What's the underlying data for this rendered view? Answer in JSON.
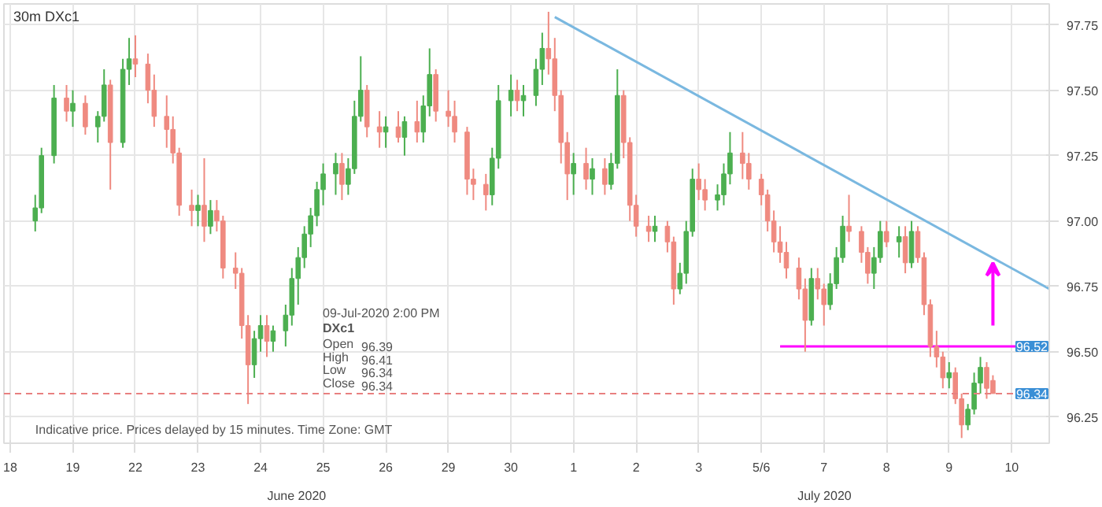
{
  "chart_data": {
    "type": "candlestick",
    "title": "30m  DXc1",
    "categories": [
      "18",
      null,
      null,
      null,
      null,
      null,
      null,
      null,
      null,
      null,
      "19",
      null,
      null,
      null,
      null,
      null,
      null,
      null,
      null,
      null,
      "22",
      null,
      null,
      null,
      null,
      null,
      null,
      null,
      null,
      null,
      "23",
      null,
      null,
      null,
      null,
      null,
      null,
      null,
      null,
      null,
      "24",
      null,
      null,
      null,
      null,
      null,
      null,
      null,
      null,
      null,
      "25",
      null,
      null,
      null,
      null,
      null,
      null,
      null,
      null,
      null,
      "26",
      null,
      null,
      null,
      null,
      null,
      null,
      null,
      null,
      null,
      "29",
      null,
      null,
      null,
      null,
      null,
      null,
      null,
      null,
      null,
      "30",
      null,
      null,
      null,
      null,
      null,
      null,
      null,
      null,
      null,
      "1",
      null,
      null,
      null,
      null,
      null,
      null,
      null,
      null,
      null,
      "2",
      null,
      null,
      null,
      null,
      null,
      null,
      null,
      null,
      null,
      "3",
      null,
      null,
      null,
      null,
      null,
      null,
      null,
      null,
      null,
      "5/6",
      null,
      null,
      null,
      null,
      null,
      null,
      null,
      null,
      null,
      "7",
      null,
      null,
      null,
      null,
      null,
      null,
      null,
      null,
      null,
      "8",
      null,
      null,
      null,
      null,
      null,
      null,
      null,
      null,
      null,
      "9",
      null,
      null,
      null,
      null,
      null,
      null,
      null,
      null,
      null,
      "10",
      null,
      null,
      null,
      null,
      null,
      null
    ],
    "ylim": [
      96.15,
      97.83
    ],
    "yticks": [
      {
        "value": 96.25,
        "label": "96.25"
      },
      {
        "value": 96.5,
        "label": "96.50"
      },
      {
        "value": 96.75,
        "label": "96.75"
      },
      {
        "value": 97.0,
        "label": "97.00"
      },
      {
        "value": 97.25,
        "label": "97.25"
      },
      {
        "value": 97.5,
        "label": "97.50"
      },
      {
        "value": 97.75,
        "label": "97.75"
      }
    ],
    "grid": true,
    "series": [
      {
        "ohlc": [
          null,
          null,
          null,
          null,
          [
            97.0,
            97.1,
            96.96,
            97.05
          ],
          [
            97.05,
            97.28,
            97.03,
            97.25
          ],
          null,
          [
            97.25,
            97.52,
            97.22,
            97.47
          ],
          null,
          [
            97.47,
            97.52,
            97.38,
            97.42
          ],
          [
            97.42,
            97.5,
            97.36,
            97.45
          ],
          null,
          [
            97.45,
            97.48,
            97.33,
            97.36
          ],
          null,
          [
            97.36,
            97.42,
            97.3,
            97.4
          ],
          [
            97.4,
            97.58,
            97.38,
            97.52
          ],
          [
            97.52,
            97.54,
            97.12,
            97.3
          ],
          null,
          [
            97.3,
            97.62,
            97.28,
            97.58
          ],
          [
            97.58,
            97.7,
            97.52,
            97.62
          ],
          [
            97.62,
            97.71,
            97.55,
            97.6
          ],
          null,
          [
            97.6,
            97.64,
            97.45,
            97.5
          ],
          [
            97.5,
            97.56,
            97.36,
            97.4
          ],
          null,
          [
            97.4,
            97.48,
            97.28,
            97.35
          ],
          [
            97.35,
            97.4,
            97.22,
            97.26
          ],
          [
            97.26,
            97.28,
            97.02,
            97.06
          ],
          null,
          [
            97.06,
            97.12,
            96.98,
            97.04
          ],
          [
            97.04,
            97.1,
            96.98,
            97.06
          ],
          [
            97.06,
            97.24,
            96.92,
            96.98
          ],
          [
            96.98,
            97.08,
            96.95,
            97.04
          ],
          [
            97.04,
            97.08,
            96.96,
            97.0
          ],
          [
            97.0,
            97.02,
            96.78,
            96.82
          ],
          null,
          [
            96.82,
            96.88,
            96.74,
            96.8
          ],
          [
            96.8,
            96.82,
            96.55,
            96.6
          ],
          [
            96.6,
            96.64,
            96.3,
            96.45
          ],
          [
            96.45,
            96.58,
            96.4,
            96.55
          ],
          [
            96.55,
            96.64,
            96.5,
            96.6
          ],
          [
            96.6,
            96.64,
            96.48,
            96.54
          ],
          [
            96.54,
            96.6,
            96.5,
            96.58
          ],
          null,
          [
            96.58,
            96.68,
            96.52,
            96.64
          ],
          [
            96.64,
            96.82,
            96.6,
            96.78
          ],
          [
            96.78,
            96.9,
            96.68,
            96.86
          ],
          [
            96.86,
            96.98,
            96.82,
            96.95
          ],
          [
            96.95,
            97.05,
            96.9,
            97.02
          ],
          [
            97.02,
            97.15,
            96.98,
            97.12
          ],
          [
            97.12,
            97.22,
            97.06,
            97.18
          ],
          null,
          [
            97.18,
            97.26,
            97.1,
            97.22
          ],
          [
            97.22,
            97.26,
            97.08,
            97.14
          ],
          [
            97.14,
            97.24,
            97.1,
            97.2
          ],
          [
            97.2,
            97.46,
            97.18,
            97.4
          ],
          [
            97.4,
            97.63,
            97.38,
            97.5
          ],
          [
            97.5,
            97.52,
            97.32,
            97.36
          ],
          null,
          [
            97.36,
            97.42,
            97.28,
            97.34
          ],
          [
            97.34,
            97.4,
            97.28,
            97.36
          ],
          null,
          [
            97.36,
            97.42,
            97.3,
            97.32
          ],
          [
            97.32,
            97.4,
            97.25,
            97.38
          ],
          null,
          [
            97.38,
            97.46,
            97.3,
            97.34
          ],
          [
            97.34,
            97.48,
            97.3,
            97.44
          ],
          [
            97.44,
            97.66,
            97.4,
            97.56
          ],
          [
            97.56,
            97.58,
            97.38,
            97.42
          ],
          null,
          [
            97.42,
            97.5,
            97.36,
            97.4
          ],
          [
            97.4,
            97.46,
            97.3,
            97.34
          ],
          null,
          [
            97.34,
            97.36,
            97.1,
            97.16
          ],
          [
            97.16,
            97.2,
            97.08,
            97.14
          ],
          null,
          [
            97.14,
            97.18,
            97.04,
            97.1
          ],
          [
            97.1,
            97.28,
            97.06,
            97.24
          ],
          [
            97.24,
            97.52,
            97.2,
            97.46
          ],
          null,
          [
            97.46,
            97.56,
            97.4,
            97.5
          ],
          [
            97.5,
            97.54,
            97.42,
            97.46
          ],
          [
            97.46,
            97.52,
            97.4,
            97.48
          ],
          null,
          [
            97.48,
            97.62,
            97.44,
            97.58
          ],
          [
            97.58,
            97.72,
            97.52,
            97.66
          ],
          [
            97.66,
            97.8,
            97.56,
            97.62
          ],
          [
            97.62,
            97.7,
            97.42,
            97.48
          ],
          [
            97.48,
            97.5,
            97.22,
            97.3
          ],
          [
            97.3,
            97.34,
            97.08,
            97.18
          ],
          [
            97.18,
            97.26,
            97.1,
            97.22
          ],
          null,
          [
            97.22,
            97.28,
            97.12,
            97.16
          ],
          [
            97.16,
            97.24,
            97.1,
            97.2
          ],
          null,
          [
            97.2,
            97.24,
            97.1,
            97.14
          ],
          [
            97.14,
            97.26,
            97.12,
            97.22
          ],
          [
            97.22,
            97.58,
            97.2,
            97.48
          ],
          [
            97.48,
            97.5,
            97.24,
            97.3
          ],
          [
            97.3,
            97.32,
            97.0,
            97.06
          ],
          [
            97.06,
            97.1,
            96.94,
            96.98
          ],
          null,
          [
            96.98,
            97.02,
            96.92,
            96.96
          ],
          [
            96.96,
            97.02,
            96.92,
            96.98
          ],
          null,
          [
            96.98,
            97.0,
            96.88,
            96.92
          ],
          [
            96.92,
            96.94,
            96.68,
            96.74
          ],
          [
            96.74,
            96.84,
            96.72,
            96.8
          ],
          [
            96.8,
            97.0,
            96.76,
            96.96
          ],
          [
            96.96,
            97.2,
            96.94,
            97.16
          ],
          [
            97.16,
            97.22,
            97.08,
            97.12
          ],
          [
            97.12,
            97.16,
            97.04,
            97.08
          ],
          null,
          [
            97.08,
            97.14,
            97.04,
            97.1
          ],
          [
            97.1,
            97.22,
            97.06,
            97.18
          ],
          [
            97.18,
            97.34,
            97.14,
            97.26
          ],
          null,
          [
            97.26,
            97.34,
            97.16,
            97.22
          ],
          [
            97.22,
            97.26,
            97.12,
            97.16
          ],
          null,
          [
            97.16,
            97.18,
            97.06,
            97.1
          ],
          [
            97.1,
            97.12,
            96.96,
            97.0
          ],
          [
            97.0,
            97.04,
            96.88,
            96.92
          ],
          [
            96.92,
            96.98,
            96.84,
            96.88
          ],
          [
            96.88,
            96.92,
            96.78,
            96.82
          ],
          null,
          [
            96.82,
            96.86,
            96.7,
            96.74
          ],
          [
            96.74,
            96.78,
            96.5,
            96.62
          ],
          [
            96.62,
            96.82,
            96.6,
            96.78
          ],
          [
            96.78,
            96.82,
            96.7,
            96.74
          ],
          [
            96.74,
            96.76,
            96.6,
            96.68
          ],
          [
            96.68,
            96.8,
            96.66,
            96.76
          ],
          [
            96.76,
            96.9,
            96.74,
            96.86
          ],
          [
            96.86,
            97.02,
            96.84,
            96.98
          ],
          [
            96.98,
            97.1,
            96.92,
            96.96
          ],
          null,
          [
            96.96,
            96.98,
            96.84,
            96.88
          ],
          [
            96.88,
            96.9,
            96.76,
            96.8
          ],
          [
            96.8,
            96.9,
            96.74,
            96.86
          ],
          [
            96.86,
            97.0,
            96.84,
            96.96
          ],
          [
            96.96,
            97.0,
            96.9,
            96.92
          ],
          null,
          [
            96.92,
            96.98,
            96.86,
            96.94
          ],
          [
            96.94,
            96.98,
            96.8,
            96.84
          ],
          [
            96.84,
            97.0,
            96.82,
            96.96
          ],
          [
            96.96,
            96.98,
            96.84,
            96.86
          ],
          [
            96.86,
            96.88,
            96.64,
            96.68
          ],
          [
            96.68,
            96.7,
            96.48,
            96.52
          ],
          [
            96.52,
            96.58,
            96.44,
            96.48
          ],
          [
            96.48,
            96.5,
            96.36,
            96.4
          ],
          [
            96.4,
            96.46,
            96.36,
            96.42
          ],
          [
            96.42,
            96.44,
            96.3,
            96.32
          ],
          [
            96.32,
            96.34,
            96.17,
            96.22
          ],
          [
            96.22,
            96.3,
            96.2,
            96.28
          ],
          [
            96.28,
            96.42,
            96.26,
            96.38
          ],
          [
            96.38,
            96.48,
            96.34,
            96.44
          ],
          [
            96.44,
            96.46,
            96.32,
            96.36
          ],
          [
            96.39,
            96.41,
            96.34,
            96.34
          ],
          null,
          null,
          null,
          null,
          null,
          null,
          null,
          null,
          null
        ],
        "colors": [
          null,
          null,
          null,
          null,
          "#4caf50",
          "#4caf50",
          null,
          "#4caf50",
          null,
          "#ef8a80",
          "#4caf50",
          null,
          "#ef8a80",
          null,
          "#4caf50",
          "#4caf50",
          "#ef8a80",
          null,
          "#4caf50",
          "#4caf50",
          "#ef8a80",
          null,
          "#ef8a80",
          "#ef8a80",
          null,
          "#ef8a80",
          "#ef8a80",
          "#ef8a80",
          null,
          "#ef8a80",
          "#4caf50",
          "#ef8a80",
          "#4caf50",
          "#ef8a80",
          "#ef8a80",
          null,
          "#ef8a80",
          "#ef8a80",
          "#ef8a80",
          "#4caf50",
          "#4caf50",
          "#ef8a80",
          "#4caf50",
          null,
          "#4caf50",
          "#4caf50",
          "#4caf50",
          "#4caf50",
          "#4caf50",
          "#4caf50",
          "#4caf50",
          null,
          "#4caf50",
          "#ef8a80",
          "#4caf50",
          "#4caf50",
          "#4caf50",
          "#ef8a80",
          null,
          "#ef8a80",
          "#4caf50",
          null,
          "#ef8a80",
          "#4caf50",
          null,
          "#ef8a80",
          "#4caf50",
          "#4caf50",
          "#ef8a80",
          null,
          "#ef8a80",
          "#ef8a80",
          null,
          "#ef8a80",
          "#ef8a80",
          null,
          "#ef8a80",
          "#4caf50",
          "#4caf50",
          null,
          "#4caf50",
          "#ef8a80",
          "#4caf50",
          null,
          "#4caf50",
          "#4caf50",
          "#ef8a80",
          "#ef8a80",
          "#ef8a80",
          "#ef8a80",
          "#4caf50",
          null,
          "#ef8a80",
          "#4caf50",
          null,
          "#ef8a80",
          "#4caf50",
          "#4caf50",
          "#ef8a80",
          "#ef8a80",
          "#ef8a80",
          null,
          "#ef8a80",
          "#4caf50",
          null,
          "#ef8a80",
          "#ef8a80",
          "#4caf50",
          "#4caf50",
          "#4caf50",
          "#ef8a80",
          "#ef8a80",
          null,
          "#4caf50",
          "#4caf50",
          "#4caf50",
          null,
          "#ef8a80",
          "#ef8a80",
          null,
          "#ef8a80",
          "#ef8a80",
          "#ef8a80",
          "#ef8a80",
          "#ef8a80",
          null,
          "#ef8a80",
          "#ef8a80",
          "#4caf50",
          "#ef8a80",
          "#ef8a80",
          "#4caf50",
          "#4caf50",
          "#4caf50",
          "#ef8a80",
          null,
          "#ef8a80",
          "#ef8a80",
          "#4caf50",
          "#4caf50",
          "#ef8a80",
          null,
          "#4caf50",
          "#ef8a80",
          "#4caf50",
          "#ef8a80",
          "#ef8a80",
          "#ef8a80",
          "#ef8a80",
          "#ef8a80",
          "#4caf50",
          "#ef8a80",
          "#ef8a80",
          "#4caf50",
          "#4caf50",
          "#4caf50",
          "#ef8a80",
          "#ef8a80",
          null,
          null,
          null,
          null,
          null,
          null,
          null,
          null,
          null
        ]
      },
      {
        "type": "line",
        "color": "#7ab8e0",
        "values": [
          null,
          null,
          null,
          null,
          null,
          null,
          null,
          null,
          null,
          null,
          null,
          null,
          null,
          null,
          null,
          null,
          null,
          null,
          null,
          null,
          null,
          null,
          null,
          null,
          null,
          null,
          null,
          null,
          null,
          null,
          null,
          null,
          null,
          null,
          null,
          null,
          null,
          null,
          null,
          null,
          null,
          null,
          null,
          null,
          null,
          null,
          null,
          null,
          null,
          null,
          null,
          null,
          null,
          null,
          null,
          null,
          null,
          null,
          null,
          null,
          null,
          null,
          null,
          null,
          null,
          null,
          null,
          null,
          null,
          null,
          null,
          null,
          null,
          null,
          null,
          null,
          null,
          null,
          null,
          null,
          null,
          null,
          null,
          null,
          null,
          null,
          null,
          97.78,
          null,
          null,
          null,
          null,
          null,
          null,
          null,
          null,
          null,
          null,
          null,
          null,
          null,
          null,
          null,
          null,
          null,
          null,
          null,
          null,
          null,
          null,
          null,
          null,
          null,
          null,
          null,
          null,
          null,
          null,
          null,
          null,
          null,
          null,
          null,
          null,
          null,
          null,
          null,
          null,
          null,
          null,
          null,
          null,
          null,
          null,
          null,
          null,
          null,
          null,
          null,
          null,
          null,
          null,
          null,
          null,
          null,
          null,
          null,
          null,
          null,
          null,
          null,
          null,
          null,
          null,
          null,
          null,
          null,
          null,
          null,
          null,
          null,
          null,
          null,
          null,
          null,
          null,
          96.74
        ]
      },
      {
        "type": "line",
        "color": "#ff00ff",
        "values": [
          null,
          null,
          null,
          null,
          null,
          null,
          null,
          null,
          null,
          null,
          null,
          null,
          null,
          null,
          null,
          null,
          null,
          null,
          null,
          null,
          null,
          null,
          null,
          null,
          null,
          null,
          null,
          null,
          null,
          null,
          null,
          null,
          null,
          null,
          null,
          null,
          null,
          null,
          null,
          null,
          null,
          null,
          null,
          null,
          null,
          null,
          null,
          null,
          null,
          null,
          null,
          null,
          null,
          null,
          null,
          null,
          null,
          null,
          null,
          null,
          null,
          null,
          null,
          null,
          null,
          null,
          null,
          null,
          null,
          null,
          null,
          null,
          null,
          null,
          null,
          null,
          null,
          null,
          null,
          null,
          null,
          null,
          null,
          null,
          null,
          null,
          null,
          null,
          null,
          null,
          null,
          null,
          null,
          null,
          null,
          null,
          null,
          null,
          null,
          null,
          null,
          null,
          null,
          null,
          null,
          null,
          null,
          null,
          null,
          null,
          null,
          null,
          null,
          null,
          null,
          null,
          null,
          null,
          null,
          null,
          null,
          null,
          null,
          96.52,
          null,
          null,
          null,
          null,
          null,
          null,
          null,
          null,
          null,
          null,
          null,
          null,
          null,
          null,
          null,
          null,
          null,
          null,
          null,
          null,
          null,
          null,
          null,
          null,
          null,
          null,
          null,
          null,
          null,
          null,
          null,
          null,
          null,
          null,
          null,
          null,
          null,
          null,
          null,
          null,
          null,
          null,
          96.52
        ]
      }
    ],
    "ref_lines": [
      {
        "axis": "y",
        "value": 96.34,
        "label": "96.34",
        "color": "#e88080",
        "line_style": "dashed"
      }
    ],
    "annotations": [
      "Indicative price. Prices delayed by 15 minutes.   Time Zone: GMT",
      "June 2020",
      "July 2020",
      "09-Jul-2020 2:00 PM",
      "DXc1",
      "Open",
      "96.39",
      "High",
      "96.41",
      "Low",
      "96.34",
      "Close",
      "96.34",
      {
        "text": "96.52",
        "y": 96.52
      }
    ]
  }
}
